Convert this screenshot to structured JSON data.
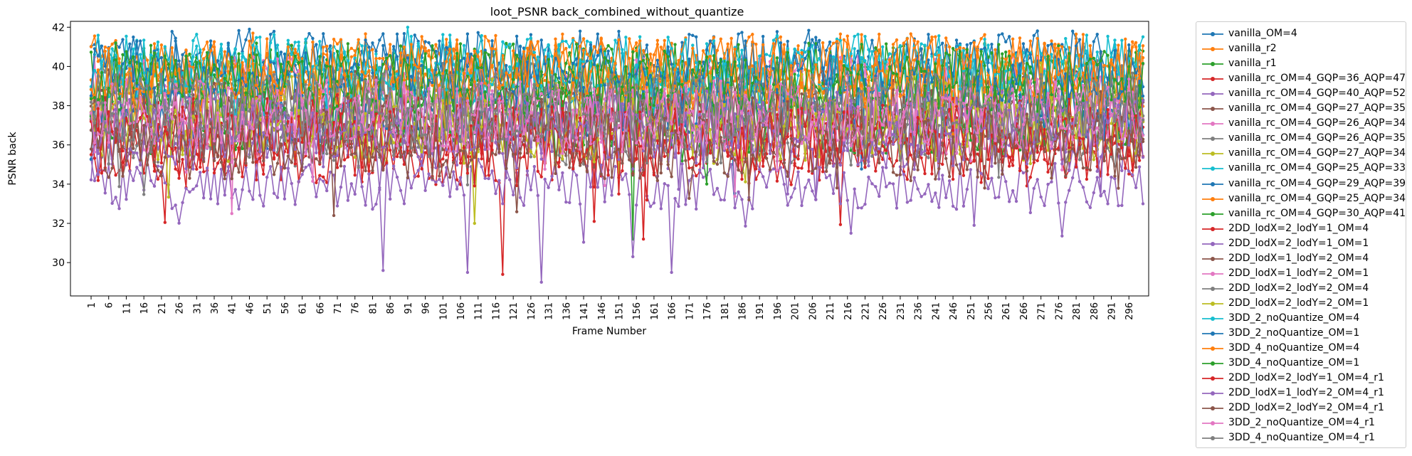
{
  "chart_data": {
    "type": "line",
    "title": "loot_PSNR back_combined_without_quantize",
    "xlabel": "Frame Number",
    "ylabel": "PSNR back",
    "x_range": [
      1,
      300
    ],
    "ylim": [
      28.3,
      42.3
    ],
    "y_ticks": [
      30,
      32,
      34,
      36,
      38,
      40,
      42
    ],
    "x_tick_labels": [
      "1",
      "6",
      "11",
      "16",
      "21",
      "26",
      "31",
      "36",
      "41",
      "46",
      "51",
      "56",
      "61",
      "66",
      "71",
      "76",
      "81",
      "86",
      "91",
      "96",
      "101",
      "106",
      "111",
      "116",
      "121",
      "126",
      "131",
      "136",
      "141",
      "146",
      "151",
      "156",
      "161",
      "166",
      "171",
      "176",
      "181",
      "186",
      "191",
      "196",
      "201",
      "206",
      "211",
      "216",
      "221",
      "226",
      "231",
      "236",
      "241",
      "246",
      "251",
      "256",
      "261",
      "266",
      "271",
      "276",
      "281",
      "286",
      "291",
      "296"
    ],
    "grid": false,
    "legend_placement": "outside-right",
    "series": [
      {
        "name": "vanilla_OM=4",
        "color": "#1f77b4",
        "mean": 40.4,
        "spread": 0.9,
        "dips": [
          [
            46,
            41.9
          ],
          [
            280,
            41.8
          ]
        ]
      },
      {
        "name": "vanilla_r2",
        "color": "#ff7f0e",
        "mean": 40.1,
        "spread": 1.0,
        "dips": []
      },
      {
        "name": "vanilla_r1",
        "color": "#2ca02c",
        "mean": 39.6,
        "spread": 1.0,
        "dips": [
          [
            155,
            31.2
          ]
        ]
      },
      {
        "name": "vanilla_rc_OM=4_GQP=36_AQP=47",
        "color": "#d62728",
        "mean": 35.8,
        "spread": 1.1,
        "dips": [
          [
            118,
            29.4
          ],
          [
            144,
            32.1
          ],
          [
            158,
            31.2
          ]
        ]
      },
      {
        "name": "vanilla_rc_OM=4_GQP=40_AQP=52",
        "color": "#9467bd",
        "mean": 34.0,
        "spread": 0.8,
        "dips": [
          [
            84,
            29.6
          ],
          [
            108,
            29.5
          ],
          [
            129,
            29.0
          ],
          [
            155,
            30.3
          ],
          [
            166,
            29.5
          ],
          [
            217,
            31.5
          ],
          [
            252,
            31.9
          ]
        ]
      },
      {
        "name": "vanilla_rc_OM=4_GQP=27_AQP=35",
        "color": "#8c564b",
        "mean": 38.3,
        "spread": 1.1,
        "dips": [
          [
            70,
            32.4
          ]
        ]
      },
      {
        "name": "vanilla_rc_OM=4_GQP=26_AQP=34",
        "color": "#e377c2",
        "mean": 38.8,
        "spread": 1.1,
        "dips": [
          [
            41,
            32.5
          ]
        ]
      },
      {
        "name": "vanilla_rc_OM=4_GQP=26_AQP=35",
        "color": "#7f7f7f",
        "mean": 38.6,
        "spread": 1.1,
        "dips": []
      },
      {
        "name": "vanilla_rc_OM=4_GQP=27_AQP=34",
        "color": "#bcbd22",
        "mean": 38.5,
        "spread": 1.1,
        "dips": [
          [
            110,
            32.0
          ]
        ]
      },
      {
        "name": "vanilla_rc_OM=4_GQP=25_AQP=33",
        "color": "#17becf",
        "mean": 39.5,
        "spread": 1.0,
        "dips": [
          [
            91,
            42.0
          ]
        ]
      },
      {
        "name": "vanilla_rc_OM=4_GQP=29_AQP=39",
        "color": "#1f77b4",
        "mean": 37.8,
        "spread": 1.1,
        "dips": []
      },
      {
        "name": "vanilla_rc_OM=4_GQP=25_AQP=34",
        "color": "#ff7f0e",
        "mean": 39.4,
        "spread": 1.0,
        "dips": []
      },
      {
        "name": "vanilla_rc_OM=4_GQP=30_AQP=41",
        "color": "#2ca02c",
        "mean": 37.3,
        "spread": 1.1,
        "dips": []
      },
      {
        "name": "2DD_lodX=2_lodY=1_OM=4",
        "color": "#d62728",
        "mean": 36.8,
        "spread": 1.1,
        "dips": []
      },
      {
        "name": "2DD_lodX=2_lodY=1_OM=1",
        "color": "#9467bd",
        "mean": 37.0,
        "spread": 1.1,
        "dips": []
      },
      {
        "name": "2DD_lodX=1_lodY=2_OM=4",
        "color": "#8c564b",
        "mean": 37.1,
        "spread": 1.1,
        "dips": []
      },
      {
        "name": "2DD_lodX=1_lodY=2_OM=1",
        "color": "#e377c2",
        "mean": 37.3,
        "spread": 1.1,
        "dips": []
      },
      {
        "name": "2DD_lodX=2_lodY=2_OM=4",
        "color": "#7f7f7f",
        "mean": 36.6,
        "spread": 1.1,
        "dips": []
      },
      {
        "name": "2DD_lodX=2_lodY=2_OM=1",
        "color": "#bcbd22",
        "mean": 36.8,
        "spread": 1.1,
        "dips": []
      },
      {
        "name": "3DD_2_noQuantize_OM=4",
        "color": "#17becf",
        "mean": 40.2,
        "spread": 0.9,
        "dips": []
      },
      {
        "name": "3DD_2_noQuantize_OM=1",
        "color": "#1f77b4",
        "mean": 39.8,
        "spread": 1.0,
        "dips": []
      },
      {
        "name": "3DD_4_noQuantize_OM=4",
        "color": "#ff7f0e",
        "mean": 39.9,
        "spread": 1.0,
        "dips": []
      },
      {
        "name": "3DD_4_noQuantize_OM=1",
        "color": "#2ca02c",
        "mean": 39.2,
        "spread": 1.0,
        "dips": []
      },
      {
        "name": "2DD_lodX=2_lodY=1_OM=4_r1",
        "color": "#d62728",
        "mean": 36.2,
        "spread": 1.1,
        "dips": []
      },
      {
        "name": "2DD_lodX=1_lodY=2_OM=4_r1",
        "color": "#9467bd",
        "mean": 36.5,
        "spread": 1.1,
        "dips": []
      },
      {
        "name": "2DD_lodX=2_lodY=2_OM=4_r1",
        "color": "#8c564b",
        "mean": 36.0,
        "spread": 1.1,
        "dips": []
      },
      {
        "name": "3DD_2_noQuantize_OM=4_r1",
        "color": "#e377c2",
        "mean": 37.6,
        "spread": 1.1,
        "dips": []
      },
      {
        "name": "3DD_4_noQuantize_OM=4_r1",
        "color": "#7f7f7f",
        "mean": 37.9,
        "spread": 1.1,
        "dips": []
      }
    ]
  }
}
